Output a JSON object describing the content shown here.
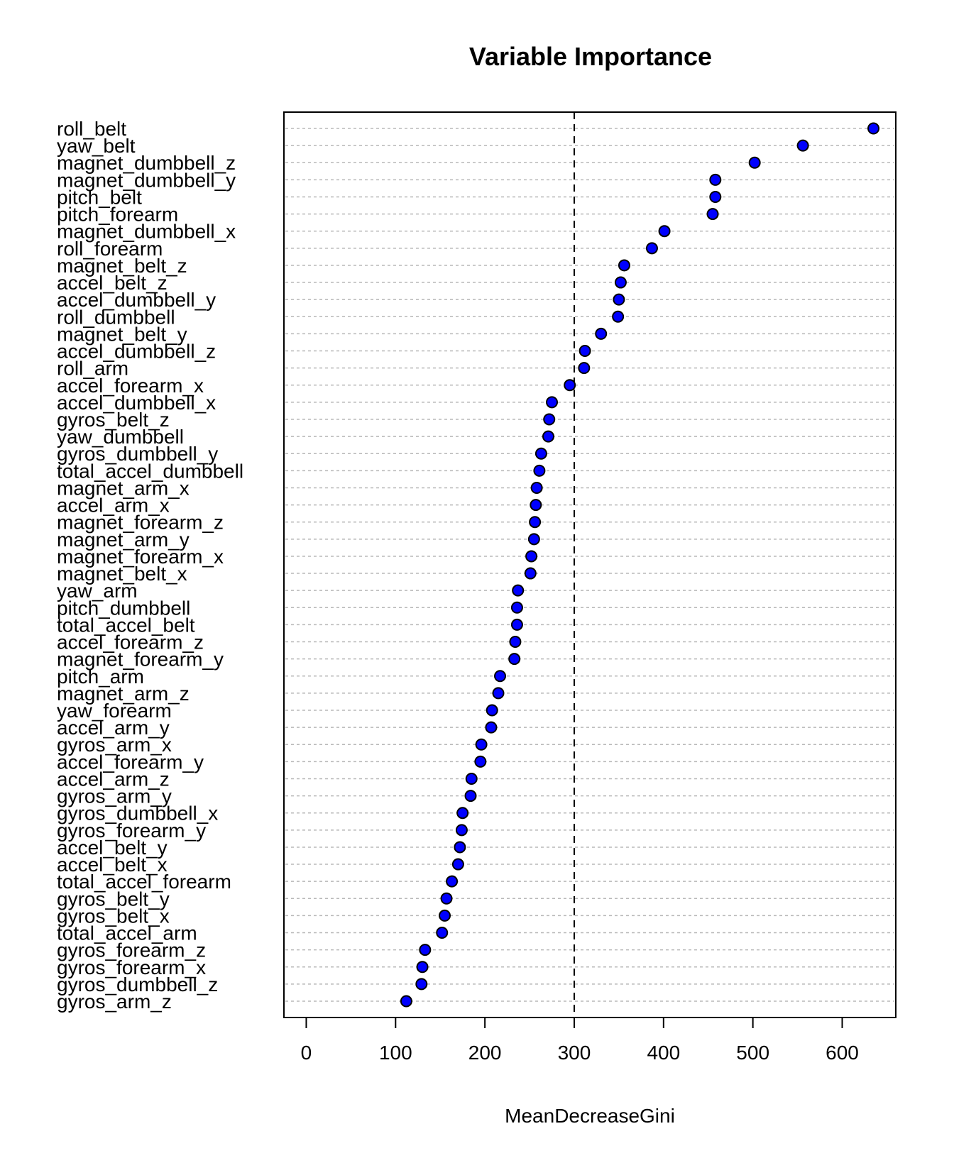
{
  "chart_data": {
    "type": "scatter",
    "title": "Variable Importance",
    "xlabel": "MeanDecreaseGini",
    "ylabel": "",
    "xlim": [
      -25,
      660
    ],
    "x_ticks": [
      0,
      100,
      200,
      300,
      400,
      500,
      600
    ],
    "reference_line": 300,
    "grid": "horizontal-dotted",
    "point_color": "#0000ff",
    "point_edge_color": "#000000",
    "categories": [
      "roll_belt",
      "yaw_belt",
      "magnet_dumbbell_z",
      "magnet_dumbbell_y",
      "pitch_belt",
      "pitch_forearm",
      "magnet_dumbbell_x",
      "roll_forearm",
      "magnet_belt_z",
      "accel_belt_z",
      "accel_dumbbell_y",
      "roll_dumbbell",
      "magnet_belt_y",
      "accel_dumbbell_z",
      "roll_arm",
      "accel_forearm_x",
      "accel_dumbbell_x",
      "gyros_belt_z",
      "yaw_dumbbell",
      "gyros_dumbbell_y",
      "total_accel_dumbbell",
      "magnet_arm_x",
      "accel_arm_x",
      "magnet_forearm_z",
      "magnet_arm_y",
      "magnet_forearm_x",
      "magnet_belt_x",
      "yaw_arm",
      "pitch_dumbbell",
      "total_accel_belt",
      "accel_forearm_z",
      "magnet_forearm_y",
      "pitch_arm",
      "magnet_arm_z",
      "yaw_forearm",
      "accel_arm_y",
      "gyros_arm_x",
      "accel_forearm_y",
      "accel_arm_z",
      "gyros_arm_y",
      "gyros_dumbbell_x",
      "gyros_forearm_y",
      "accel_belt_y",
      "accel_belt_x",
      "total_accel_forearm",
      "gyros_belt_y",
      "gyros_belt_x",
      "total_accel_arm",
      "gyros_forearm_z",
      "gyros_forearm_x",
      "gyros_dumbbell_z",
      "gyros_arm_z"
    ],
    "values": [
      635,
      556,
      502,
      458,
      458,
      455,
      401,
      387,
      356,
      352,
      350,
      349,
      330,
      312,
      311,
      295,
      275,
      272,
      271,
      263,
      261,
      258,
      257,
      256,
      255,
      252,
      251,
      237,
      236,
      236,
      234,
      233,
      217,
      215,
      208,
      207,
      196,
      195,
      185,
      184,
      175,
      174,
      172,
      170,
      163,
      157,
      155,
      152,
      133,
      130,
      129,
      112
    ]
  }
}
